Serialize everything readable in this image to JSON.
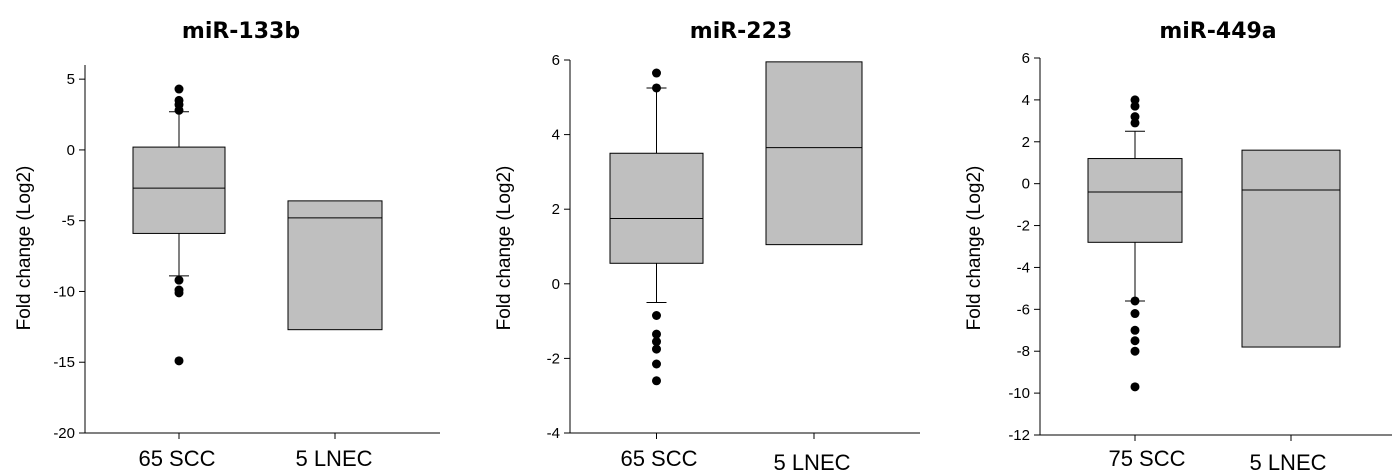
{
  "chart_data": [
    {
      "type": "box",
      "title": "miR-133b",
      "ylabel": "Fold change (Log2)",
      "ylim": [
        -20,
        6
      ],
      "yticks": [
        -20,
        -15,
        -10,
        -5,
        0,
        5
      ],
      "categories": [
        "65 SCC",
        "5 LNEC"
      ],
      "boxes": [
        {
          "category": "65 SCC",
          "q1": -5.9,
          "median": -2.7,
          "q3": 0.2,
          "whisker_low": -8.9,
          "whisker_high": 2.7,
          "outliers": [
            4.3,
            3.5,
            3.2,
            2.8,
            -9.2,
            -9.9,
            -10.1,
            -14.9
          ]
        },
        {
          "category": "5 LNEC",
          "q1": -12.7,
          "median": -4.8,
          "q3": -3.6,
          "whisker_low": null,
          "whisker_high": null,
          "outliers": []
        }
      ]
    },
    {
      "type": "box",
      "title": "miR-223",
      "ylabel": "Fold change (Log2)",
      "ylim": [
        -4,
        6
      ],
      "yticks": [
        -4,
        -2,
        0,
        2,
        4,
        6
      ],
      "categories": [
        "65 SCC",
        "5 LNEC"
      ],
      "boxes": [
        {
          "category": "65 SCC",
          "q1": 0.55,
          "median": 1.75,
          "q3": 3.5,
          "whisker_low": -0.5,
          "whisker_high": 5.25,
          "outliers": [
            5.65,
            5.25,
            -0.85,
            -1.35,
            -1.55,
            -1.75,
            -2.15,
            -2.6
          ]
        },
        {
          "category": "5 LNEC",
          "q1": 1.05,
          "median": 3.65,
          "q3": 5.95,
          "whisker_low": null,
          "whisker_high": null,
          "outliers": []
        }
      ]
    },
    {
      "type": "box",
      "title": "miR-449a",
      "ylabel": "Fold change (Log2)",
      "ylim": [
        -12,
        6
      ],
      "yticks": [
        -12,
        -10,
        -8,
        -6,
        -4,
        -2,
        0,
        2,
        4,
        6
      ],
      "categories": [
        "75 SCC",
        "5 LNEC"
      ],
      "boxes": [
        {
          "category": "75 SCC",
          "q1": -2.8,
          "median": -0.4,
          "q3": 1.2,
          "whisker_low": -5.6,
          "whisker_high": 2.5,
          "outliers": [
            4.0,
            3.7,
            3.2,
            2.9,
            -5.6,
            -6.2,
            -7.0,
            -7.5,
            -8.0,
            -9.7
          ]
        },
        {
          "category": "5 LNEC",
          "q1": -7.8,
          "median": -0.3,
          "q3": 1.6,
          "whisker_low": null,
          "whisker_high": null,
          "outliers": []
        }
      ]
    }
  ]
}
